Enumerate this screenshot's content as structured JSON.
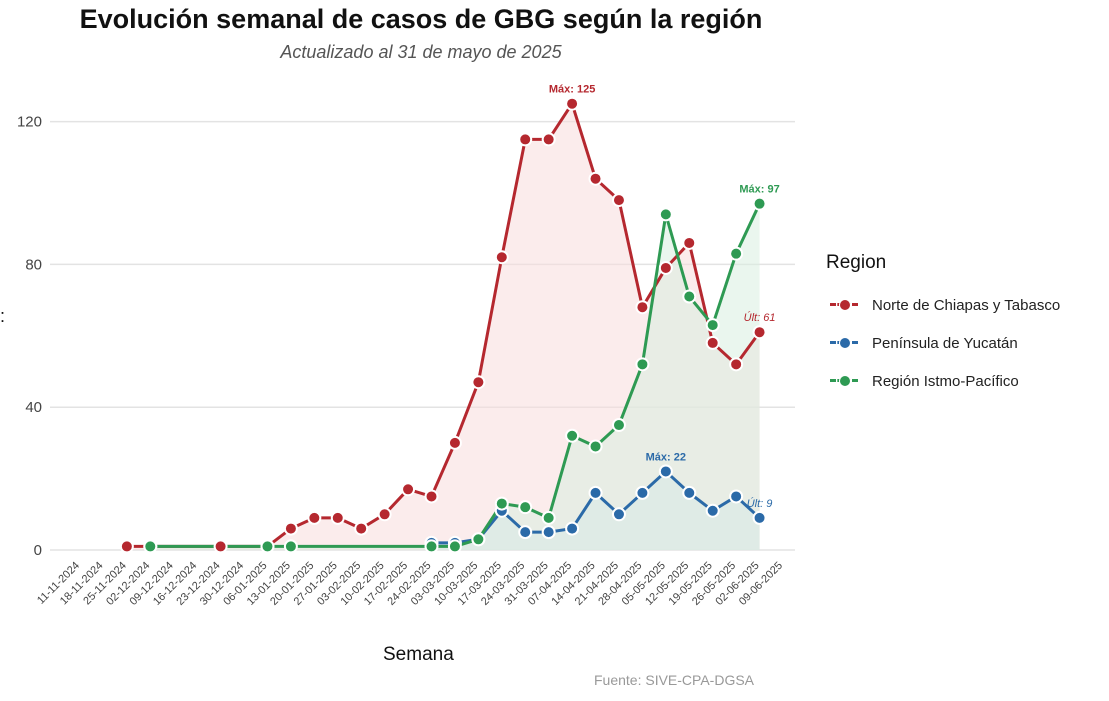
{
  "chart_data": {
    "type": "line",
    "title": "Evolución semanal de casos de GBG según la región",
    "subtitle": "Actualizado al 31 de mayo de 2025",
    "xlabel": "Semana",
    "ylabel_fragment": ":",
    "caption": "Fuente: SIVE-CPA-DGSA",
    "legend_title": "Region",
    "legend_position": "right",
    "grid": true,
    "ylim": [
      0,
      128
    ],
    "yticks": [
      0,
      40,
      80,
      120
    ],
    "categories": [
      "11-11-2024",
      "18-11-2024",
      "25-11-2024",
      "02-12-2024",
      "09-12-2024",
      "16-12-2024",
      "23-12-2024",
      "30-12-2024",
      "06-01-2025",
      "13-01-2025",
      "20-01-2025",
      "27-01-2025",
      "03-02-2025",
      "10-02-2025",
      "17-02-2025",
      "24-02-2025",
      "03-03-2025",
      "10-03-2025",
      "17-03-2025",
      "24-03-2025",
      "31-03-2025",
      "07-04-2025",
      "14-04-2025",
      "21-04-2025",
      "28-04-2025",
      "05-05-2025",
      "12-05-2025",
      "19-05-2025",
      "26-05-2025",
      "02-06-2025",
      "09-06-2025"
    ],
    "series": [
      {
        "name": "Norte de Chiapas y Tabasco",
        "color": "#b5282f",
        "fill": "#f7dcdc",
        "points": [
          [
            "25-11-2024",
            1
          ],
          [
            "02-12-2024",
            1
          ],
          [
            "23-12-2024",
            1
          ],
          [
            "06-01-2025",
            1
          ],
          [
            "13-01-2025",
            6
          ],
          [
            "20-01-2025",
            9
          ],
          [
            "27-01-2025",
            9
          ],
          [
            "03-02-2025",
            6
          ],
          [
            "10-02-2025",
            10
          ],
          [
            "17-02-2025",
            17
          ],
          [
            "24-02-2025",
            15
          ],
          [
            "03-03-2025",
            30
          ],
          [
            "10-03-2025",
            47
          ],
          [
            "17-03-2025",
            82
          ],
          [
            "24-03-2025",
            115
          ],
          [
            "31-03-2025",
            115
          ],
          [
            "07-04-2025",
            125
          ],
          [
            "14-04-2025",
            104
          ],
          [
            "21-04-2025",
            98
          ],
          [
            "28-04-2025",
            68
          ],
          [
            "05-05-2025",
            79
          ],
          [
            "12-05-2025",
            86
          ],
          [
            "19-05-2025",
            58
          ],
          [
            "26-05-2025",
            52
          ],
          [
            "02-06-2025",
            61
          ]
        ]
      },
      {
        "name": "Península de Yucatán",
        "color": "#2b6aa8",
        "fill": "#d7e3ef",
        "points": [
          [
            "24-02-2025",
            2
          ],
          [
            "03-03-2025",
            2
          ],
          [
            "10-03-2025",
            3
          ],
          [
            "17-03-2025",
            11
          ],
          [
            "24-03-2025",
            5
          ],
          [
            "31-03-2025",
            5
          ],
          [
            "07-04-2025",
            6
          ],
          [
            "14-04-2025",
            16
          ],
          [
            "21-04-2025",
            10
          ],
          [
            "28-04-2025",
            16
          ],
          [
            "05-05-2025",
            22
          ],
          [
            "12-05-2025",
            16
          ],
          [
            "19-05-2025",
            11
          ],
          [
            "26-05-2025",
            15
          ],
          [
            "02-06-2025",
            9
          ]
        ]
      },
      {
        "name": "Región Istmo-Pacífico",
        "color": "#2e9a53",
        "fill": "#d9efe0",
        "points": [
          [
            "02-12-2024",
            1
          ],
          [
            "06-01-2025",
            1
          ],
          [
            "13-01-2025",
            1
          ],
          [
            "24-02-2025",
            1
          ],
          [
            "03-03-2025",
            1
          ],
          [
            "10-03-2025",
            3
          ],
          [
            "17-03-2025",
            13
          ],
          [
            "24-03-2025",
            12
          ],
          [
            "31-03-2025",
            9
          ],
          [
            "07-04-2025",
            32
          ],
          [
            "14-04-2025",
            29
          ],
          [
            "21-04-2025",
            35
          ],
          [
            "28-04-2025",
            52
          ],
          [
            "05-05-2025",
            94
          ],
          [
            "12-05-2025",
            71
          ],
          [
            "19-05-2025",
            63
          ],
          [
            "26-05-2025",
            83
          ],
          [
            "02-06-2025",
            97
          ]
        ]
      }
    ],
    "annotations": [
      {
        "text": "Máx: 125",
        "series": 0,
        "x": "07-04-2025",
        "y": 125,
        "style": "bold"
      },
      {
        "text": "Últ: 61",
        "series": 0,
        "x": "02-06-2025",
        "y": 61,
        "style": "italic"
      },
      {
        "text": "Máx: 22",
        "series": 1,
        "x": "05-05-2025",
        "y": 22,
        "style": "bold"
      },
      {
        "text": "Últ: 9",
        "series": 1,
        "x": "02-06-2025",
        "y": 9,
        "style": "italic"
      },
      {
        "text": "Máx: 97",
        "series": 2,
        "x": "02-06-2025",
        "y": 97,
        "style": "bold"
      }
    ]
  }
}
